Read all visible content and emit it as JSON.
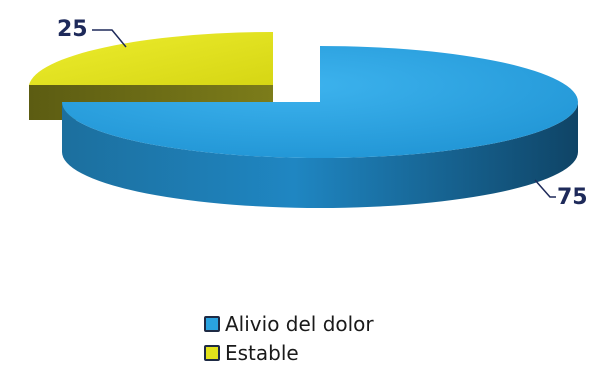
{
  "chart_data": {
    "type": "pie",
    "style": "3d-exploded",
    "title": "",
    "categories": [
      "Alivio del dolor",
      "Estable"
    ],
    "values": [
      75,
      25
    ],
    "colors": [
      "#2aa3e0",
      "#e2e21c"
    ],
    "data_labels": [
      "75",
      "25"
    ],
    "legend": {
      "placement": "bottom",
      "items": [
        {
          "label": "Alivio del dolor",
          "color": "#2aa3e0"
        },
        {
          "label": "Estable",
          "color": "#e2e21c"
        }
      ]
    },
    "label_color": "#1e2a5a"
  }
}
